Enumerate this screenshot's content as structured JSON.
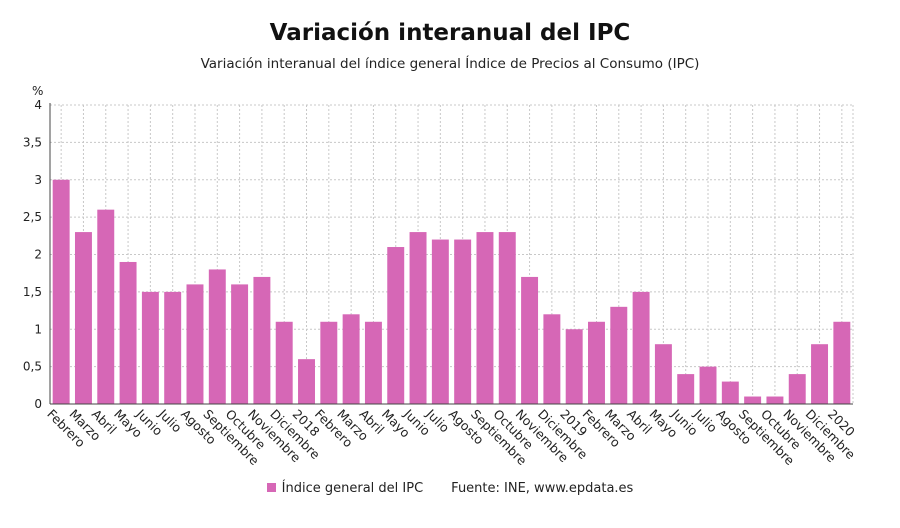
{
  "chart_data": {
    "type": "bar",
    "title": "Variación interanual del IPC",
    "subtitle": "Variación interanual del índice general Índice de Precios al Consumo (IPC)",
    "ylabel": "%",
    "ylim": [
      0,
      4
    ],
    "yticks": [
      "0",
      "0,5",
      "1",
      "1,5",
      "2",
      "2,5",
      "3",
      "3,5",
      "4"
    ],
    "grid": true,
    "legend_position": "bottom",
    "color": "#d667b6",
    "categories": [
      "Febrero",
      "Marzo",
      "Abril",
      "Mayo",
      "Junio",
      "Julio",
      "Agosto",
      "Septiembre",
      "Octubre",
      "Noviembre",
      "Diciembre",
      "2018",
      "Febrero",
      "Marzo",
      "Abril",
      "Mayo",
      "Junio",
      "Julio",
      "Agosto",
      "Septiembre",
      "Octubre",
      "Noviembre",
      "Diciembre",
      "2019",
      "Febrero",
      "Marzo",
      "Abril",
      "Mayo",
      "Junio",
      "Julio",
      "Agosto",
      "Septiembre",
      "Octubre",
      "Noviembre",
      "Diciembre",
      "2020"
    ],
    "series": [
      {
        "name": "Índice general del IPC",
        "values": [
          3.0,
          2.3,
          2.6,
          1.9,
          1.5,
          1.5,
          1.6,
          1.8,
          1.6,
          1.7,
          1.1,
          0.6,
          1.1,
          1.2,
          1.1,
          2.1,
          2.3,
          2.2,
          2.2,
          2.3,
          2.3,
          1.7,
          1.2,
          1.0,
          1.1,
          1.3,
          1.5,
          0.8,
          0.4,
          0.5,
          0.3,
          0.1,
          0.1,
          0.4,
          0.8,
          1.1
        ]
      }
    ],
    "source": "Fuente: INE, www.epdata.es"
  }
}
